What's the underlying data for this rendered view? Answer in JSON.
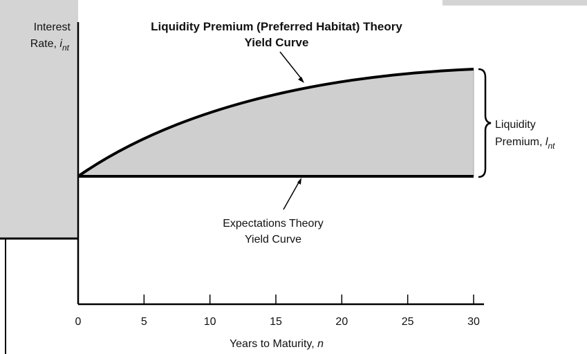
{
  "chart_data": {
    "type": "line",
    "title": [
      "Liquidity Premium (Preferred Habitat) Theory",
      "Yield Curve"
    ],
    "y_label": {
      "line1": "Interest",
      "line2": "Rate,",
      "symbol": "i",
      "subscript": "nt"
    },
    "x_label": {
      "text": "Years to Maturity,",
      "symbol": "n"
    },
    "annotations": {
      "lower_curve": [
        "Expectations Theory",
        "Yield Curve"
      ],
      "premium": {
        "line1": "Liquidity",
        "line2": "Premium,",
        "symbol": "l",
        "subscript": "nt"
      }
    },
    "xlim": [
      0,
      30
    ],
    "xticks": [
      0,
      5,
      10,
      15,
      20,
      25,
      30
    ]
  }
}
